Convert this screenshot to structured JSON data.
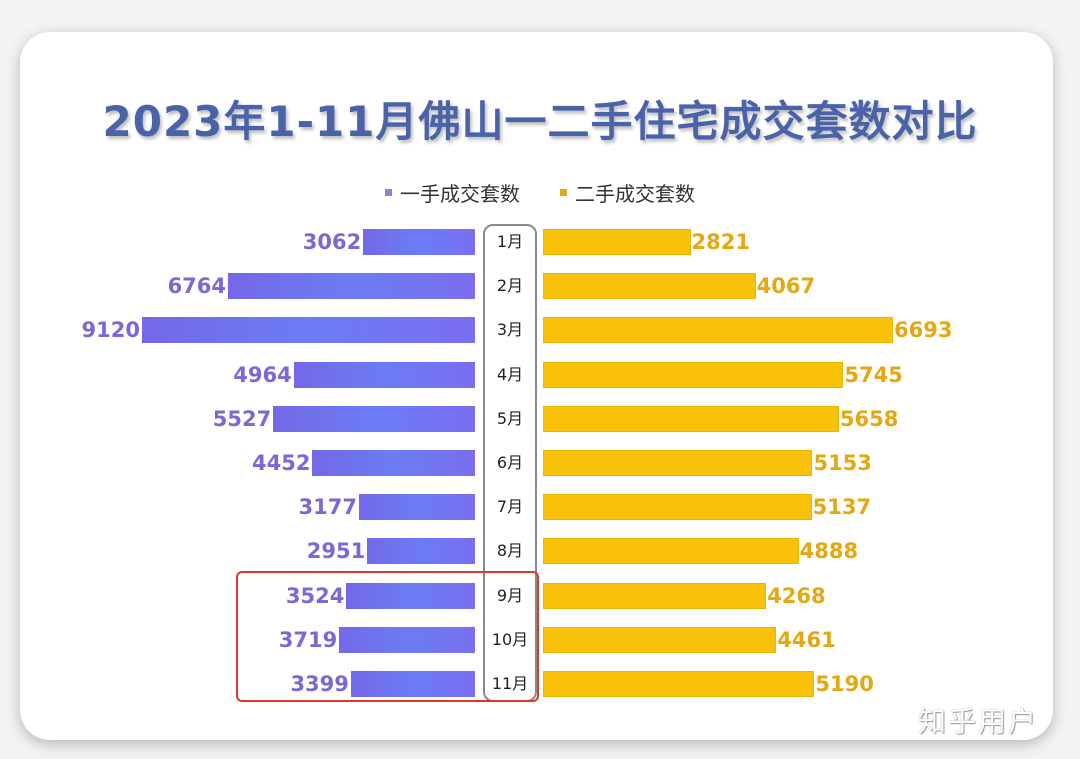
{
  "title": "2023年1-11月佛山一二手住宅成交套数对比",
  "legend": [
    {
      "label": "一手成交套数",
      "color": "#8b7fe0"
    },
    {
      "label": "二手成交套数",
      "color": "#e3a812"
    }
  ],
  "watermark": "知乎用户",
  "chart_data": {
    "type": "bar",
    "title": "2023年1-11月佛山一二手住宅成交套数对比",
    "orientation": "horizontal-butterfly",
    "categories": [
      "1月",
      "2月",
      "3月",
      "4月",
      "5月",
      "6月",
      "7月",
      "8月",
      "9月",
      "10月",
      "11月"
    ],
    "series": [
      {
        "name": "一手成交套数",
        "color": "#7468e8",
        "values": [
          3062,
          6764,
          9120,
          4964,
          5527,
          4452,
          3177,
          2951,
          3524,
          3719,
          3399
        ]
      },
      {
        "name": "二手成交套数",
        "color": "#f8c10a",
        "values": [
          2821,
          4067,
          6693,
          5745,
          5658,
          5153,
          5137,
          4888,
          4268,
          4461,
          5190
        ]
      }
    ],
    "legend_position": "top",
    "grid": false,
    "annotations": [
      "Red box highlighting 9月-11月 一手成交套数"
    ]
  }
}
